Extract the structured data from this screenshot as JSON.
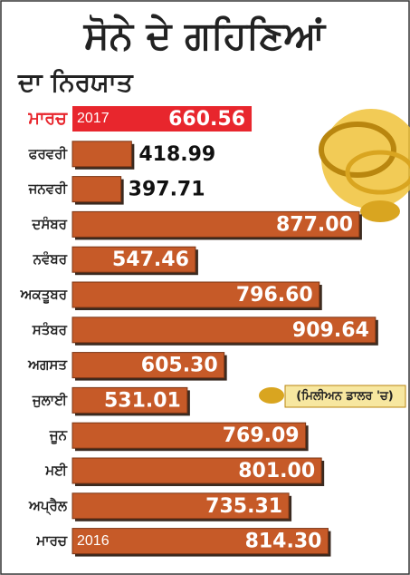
{
  "chart_data": {
    "type": "barh",
    "title": "ਸੋਨੇ ਦੇ ਗਹਿਣਿਆਂ",
    "subtitle": "ਦਾ ਨਿਰਯਾਤ",
    "note": "(ਮਿਲੀਅਨ ਡਾਲਰ 'ਚ)",
    "categories": [
      "ਮਾਰਚ",
      "ਫਰਵਰੀ",
      "ਜਨਵਰੀ",
      "ਦਸੰਬਰ",
      "ਨਵੰਬਰ",
      "ਅਕਤੂਬਰ",
      "ਸਤੰਬਰ",
      "ਅਗਸਤ",
      "ਜੁਲਾਈ",
      "ਜੂਨ",
      "ਮਈ",
      "ਅਪ੍ਰੈਲ",
      "ਮਾਰਚ"
    ],
    "year_labels": [
      "2017",
      null,
      null,
      null,
      null,
      null,
      null,
      null,
      null,
      null,
      null,
      null,
      "2016"
    ],
    "values": [
      660.56,
      418.99,
      397.71,
      877,
      547.46,
      796.6,
      909.64,
      605.3,
      531.01,
      769.09,
      801,
      735.31,
      814.3
    ],
    "value_labels": [
      "660.56",
      "418.99",
      "397.71",
      "877.00",
      "547.46",
      "796.60",
      "909.64",
      "605.30",
      "531.01",
      "769.09",
      "801.00",
      "735.31",
      "814.30"
    ],
    "colors": [
      "#e8262d",
      "#c65a28",
      "#c65a28",
      "#c65a28",
      "#c65a28",
      "#c65a28",
      "#c65a28",
      "#c65a28",
      "#c65a28",
      "#c65a28",
      "#c65a28",
      "#c65a28",
      "#c65a28"
    ],
    "xlim": [
      300,
      950
    ]
  }
}
